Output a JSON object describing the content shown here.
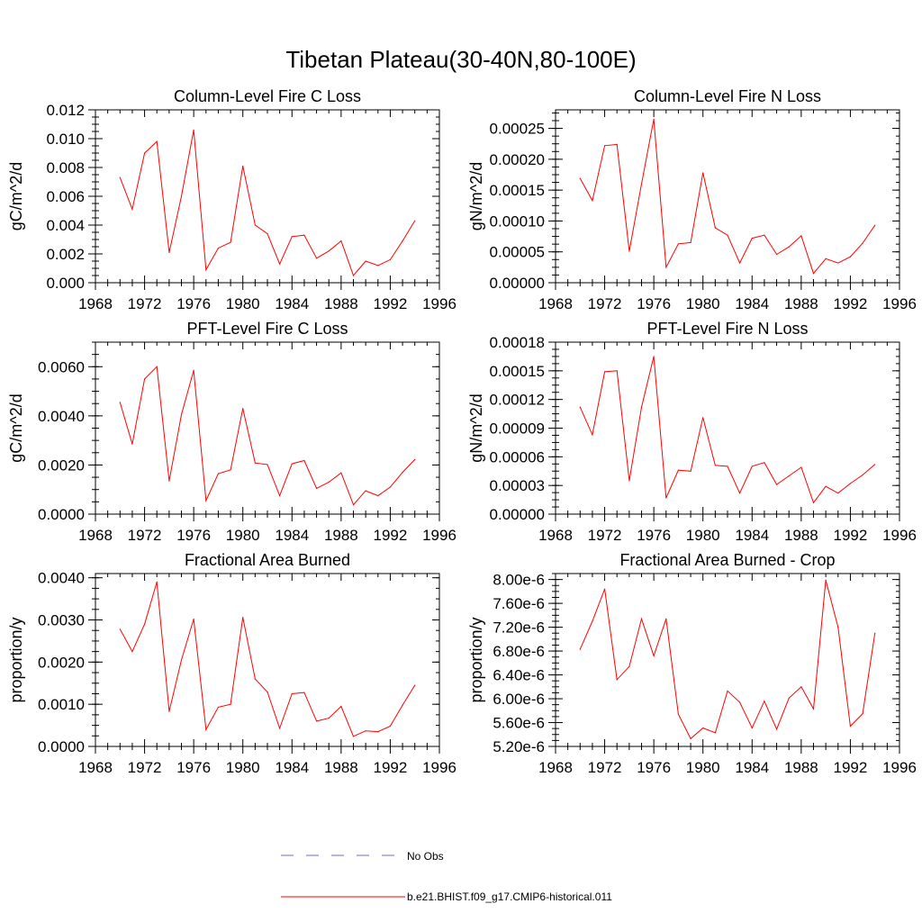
{
  "figure": {
    "title": "Tibetan Plateau(30-40N,80-100E)"
  },
  "legend": {
    "entries": [
      {
        "label": "No Obs",
        "color": "#6b6bd6",
        "dash": "dashed"
      },
      {
        "label": "b.e21.BHIST.f09_g17.CMIP6-historical.011",
        "color": "#ff0000",
        "dash": "solid"
      }
    ]
  },
  "chart_data": [
    {
      "type": "line",
      "title": "Column-Level Fire C Loss",
      "ylabel": "gC/m^2/d",
      "xlim": [
        1968,
        1996
      ],
      "xticks": [
        1968,
        1972,
        1976,
        1980,
        1984,
        1988,
        1992,
        1996
      ],
      "ylim": [
        0,
        0.012
      ],
      "yticks": [
        "0.000",
        "0.002",
        "0.004",
        "0.006",
        "0.008",
        "0.010",
        "0.012"
      ],
      "series": [
        {
          "color": "#ff0000",
          "x": [
            1970,
            1971,
            1972,
            1973,
            1974,
            1975,
            1976,
            1977,
            1978,
            1979,
            1980,
            1981,
            1982,
            1983,
            1984,
            1985,
            1986,
            1987,
            1988,
            1989,
            1990,
            1991,
            1992,
            1993,
            1994
          ],
          "values": [
            0.0073,
            0.0051,
            0.009,
            0.0098,
            0.0021,
            0.006,
            0.0106,
            0.0009,
            0.0024,
            0.0028,
            0.0081,
            0.004,
            0.0034,
            0.0013,
            0.0032,
            0.0033,
            0.0017,
            0.0022,
            0.0029,
            0.0005,
            0.0015,
            0.0012,
            0.0016,
            0.0029,
            0.0043
          ]
        }
      ]
    },
    {
      "type": "line",
      "title": "Column-Level Fire N Loss",
      "ylabel": "gN/m^2/d",
      "xlim": [
        1968,
        1996
      ],
      "xticks": [
        1968,
        1972,
        1976,
        1980,
        1984,
        1988,
        1992,
        1996
      ],
      "ylim": [
        0,
        0.00028
      ],
      "yticks": [
        "0.00000",
        "0.00005",
        "0.00010",
        "0.00015",
        "0.00020",
        "0.00025"
      ],
      "series": [
        {
          "color": "#ff0000",
          "x": [
            1970,
            1971,
            1972,
            1973,
            1974,
            1975,
            1976,
            1977,
            1978,
            1979,
            1980,
            1981,
            1982,
            1983,
            1984,
            1985,
            1986,
            1987,
            1988,
            1989,
            1990,
            1991,
            1992,
            1993,
            1994
          ],
          "values": [
            0.000169,
            0.000133,
            0.000222,
            0.000224,
            5.1e-05,
            0.00016,
            0.000265,
            2.5e-05,
            6.3e-05,
            6.5e-05,
            0.000178,
            8.9e-05,
            7.7e-05,
            3.2e-05,
            7.2e-05,
            7.7e-05,
            4.6e-05,
            5.8e-05,
            7.6e-05,
            1.5e-05,
            3.9e-05,
            3.2e-05,
            4.2e-05,
            6.4e-05,
            9.3e-05
          ]
        }
      ]
    },
    {
      "type": "line",
      "title": "PFT-Level Fire C Loss",
      "ylabel": "gC/m^2/d",
      "xlim": [
        1968,
        1996
      ],
      "xticks": [
        1968,
        1972,
        1976,
        1980,
        1984,
        1988,
        1992,
        1996
      ],
      "ylim": [
        0,
        0.007
      ],
      "yticks": [
        "0.0000",
        "0.0020",
        "0.0040",
        "0.0060"
      ],
      "series": [
        {
          "color": "#ff0000",
          "x": [
            1970,
            1971,
            1972,
            1973,
            1974,
            1975,
            1976,
            1977,
            1978,
            1979,
            1980,
            1981,
            1982,
            1983,
            1984,
            1985,
            1986,
            1987,
            1988,
            1989,
            1990,
            1991,
            1992,
            1993,
            1994
          ],
          "values": [
            0.00455,
            0.00285,
            0.0055,
            0.006,
            0.00135,
            0.00405,
            0.00585,
            0.00055,
            0.00165,
            0.0018,
            0.0043,
            0.00208,
            0.00202,
            0.00075,
            0.00205,
            0.00218,
            0.00105,
            0.0013,
            0.00168,
            0.00038,
            0.00095,
            0.00075,
            0.0011,
            0.0017,
            0.00222
          ]
        }
      ]
    },
    {
      "type": "line",
      "title": "PFT-Level Fire N Loss",
      "ylabel": "gN/m^2/d",
      "xlim": [
        1968,
        1996
      ],
      "xticks": [
        1968,
        1972,
        1976,
        1980,
        1984,
        1988,
        1992,
        1996
      ],
      "ylim": [
        0,
        0.00018
      ],
      "yticks": [
        "0.00000",
        "0.00003",
        "0.00006",
        "0.00009",
        "0.00012",
        "0.00015",
        "0.00018"
      ],
      "series": [
        {
          "color": "#ff0000",
          "x": [
            1970,
            1971,
            1972,
            1973,
            1974,
            1975,
            1976,
            1977,
            1978,
            1979,
            1980,
            1981,
            1982,
            1983,
            1984,
            1985,
            1986,
            1987,
            1988,
            1989,
            1990,
            1991,
            1992,
            1993,
            1994
          ],
          "values": [
            0.000112,
            8.3e-05,
            0.000149,
            0.00015,
            3.5e-05,
            0.000112,
            0.000165,
            1.7e-05,
            4.6e-05,
            4.5e-05,
            0.000101,
            5.1e-05,
            5e-05,
            2.2e-05,
            5e-05,
            5.4e-05,
            3.1e-05,
            4e-05,
            4.9e-05,
            1.2e-05,
            2.9e-05,
            2.2e-05,
            3.2e-05,
            4.1e-05,
            5.2e-05
          ]
        }
      ]
    },
    {
      "type": "line",
      "title": "Fractional Area Burned",
      "ylabel": "proportion/y",
      "xlim": [
        1968,
        1996
      ],
      "xticks": [
        1968,
        1972,
        1976,
        1980,
        1984,
        1988,
        1992,
        1996
      ],
      "ylim": [
        0,
        0.0041
      ],
      "yticks": [
        "0.0000",
        "0.0010",
        "0.0020",
        "0.0030",
        "0.0040"
      ],
      "series": [
        {
          "color": "#ff0000",
          "x": [
            1970,
            1971,
            1972,
            1973,
            1974,
            1975,
            1976,
            1977,
            1978,
            1979,
            1980,
            1981,
            1982,
            1983,
            1984,
            1985,
            1986,
            1987,
            1988,
            1989,
            1990,
            1991,
            1992,
            1993,
            1994
          ],
          "values": [
            0.00278,
            0.00225,
            0.0029,
            0.0039,
            0.00083,
            0.00205,
            0.00302,
            0.0004,
            0.00093,
            0.001,
            0.00306,
            0.0016,
            0.00129,
            0.00043,
            0.00125,
            0.00128,
            0.0006,
            0.00067,
            0.00095,
            0.00024,
            0.00037,
            0.00035,
            0.00048,
            0.00098,
            0.00145
          ]
        }
      ]
    },
    {
      "type": "line",
      "title": "Fractional Area Burned - Crop",
      "ylabel": "proportion/y",
      "xlim": [
        1968,
        1996
      ],
      "xticks": [
        1968,
        1972,
        1976,
        1980,
        1984,
        1988,
        1992,
        1996
      ],
      "ylim": [
        5.2e-06,
        8.1e-06
      ],
      "yticks": [
        "5.20e-6",
        "5.60e-6",
        "6.00e-6",
        "6.40e-6",
        "6.80e-6",
        "7.20e-6",
        "7.60e-6",
        "8.00e-6"
      ],
      "series": [
        {
          "color": "#ff0000",
          "x": [
            1970,
            1971,
            1972,
            1973,
            1974,
            1975,
            1976,
            1977,
            1978,
            1979,
            1980,
            1981,
            1982,
            1983,
            1984,
            1985,
            1986,
            1987,
            1988,
            1989,
            1990,
            1991,
            1992,
            1993,
            1994
          ],
          "values": [
            6.83e-06,
            7.3e-06,
            7.84e-06,
            6.32e-06,
            6.54e-06,
            7.34e-06,
            6.72e-06,
            7.34e-06,
            5.74e-06,
            5.33e-06,
            5.51e-06,
            5.43e-06,
            6.13e-06,
            5.94e-06,
            5.51e-06,
            5.96e-06,
            5.49e-06,
            6.01e-06,
            6.2e-06,
            5.83e-06,
            7.99e-06,
            7.2e-06,
            5.54e-06,
            5.75e-06,
            7.1e-06
          ]
        }
      ]
    }
  ]
}
